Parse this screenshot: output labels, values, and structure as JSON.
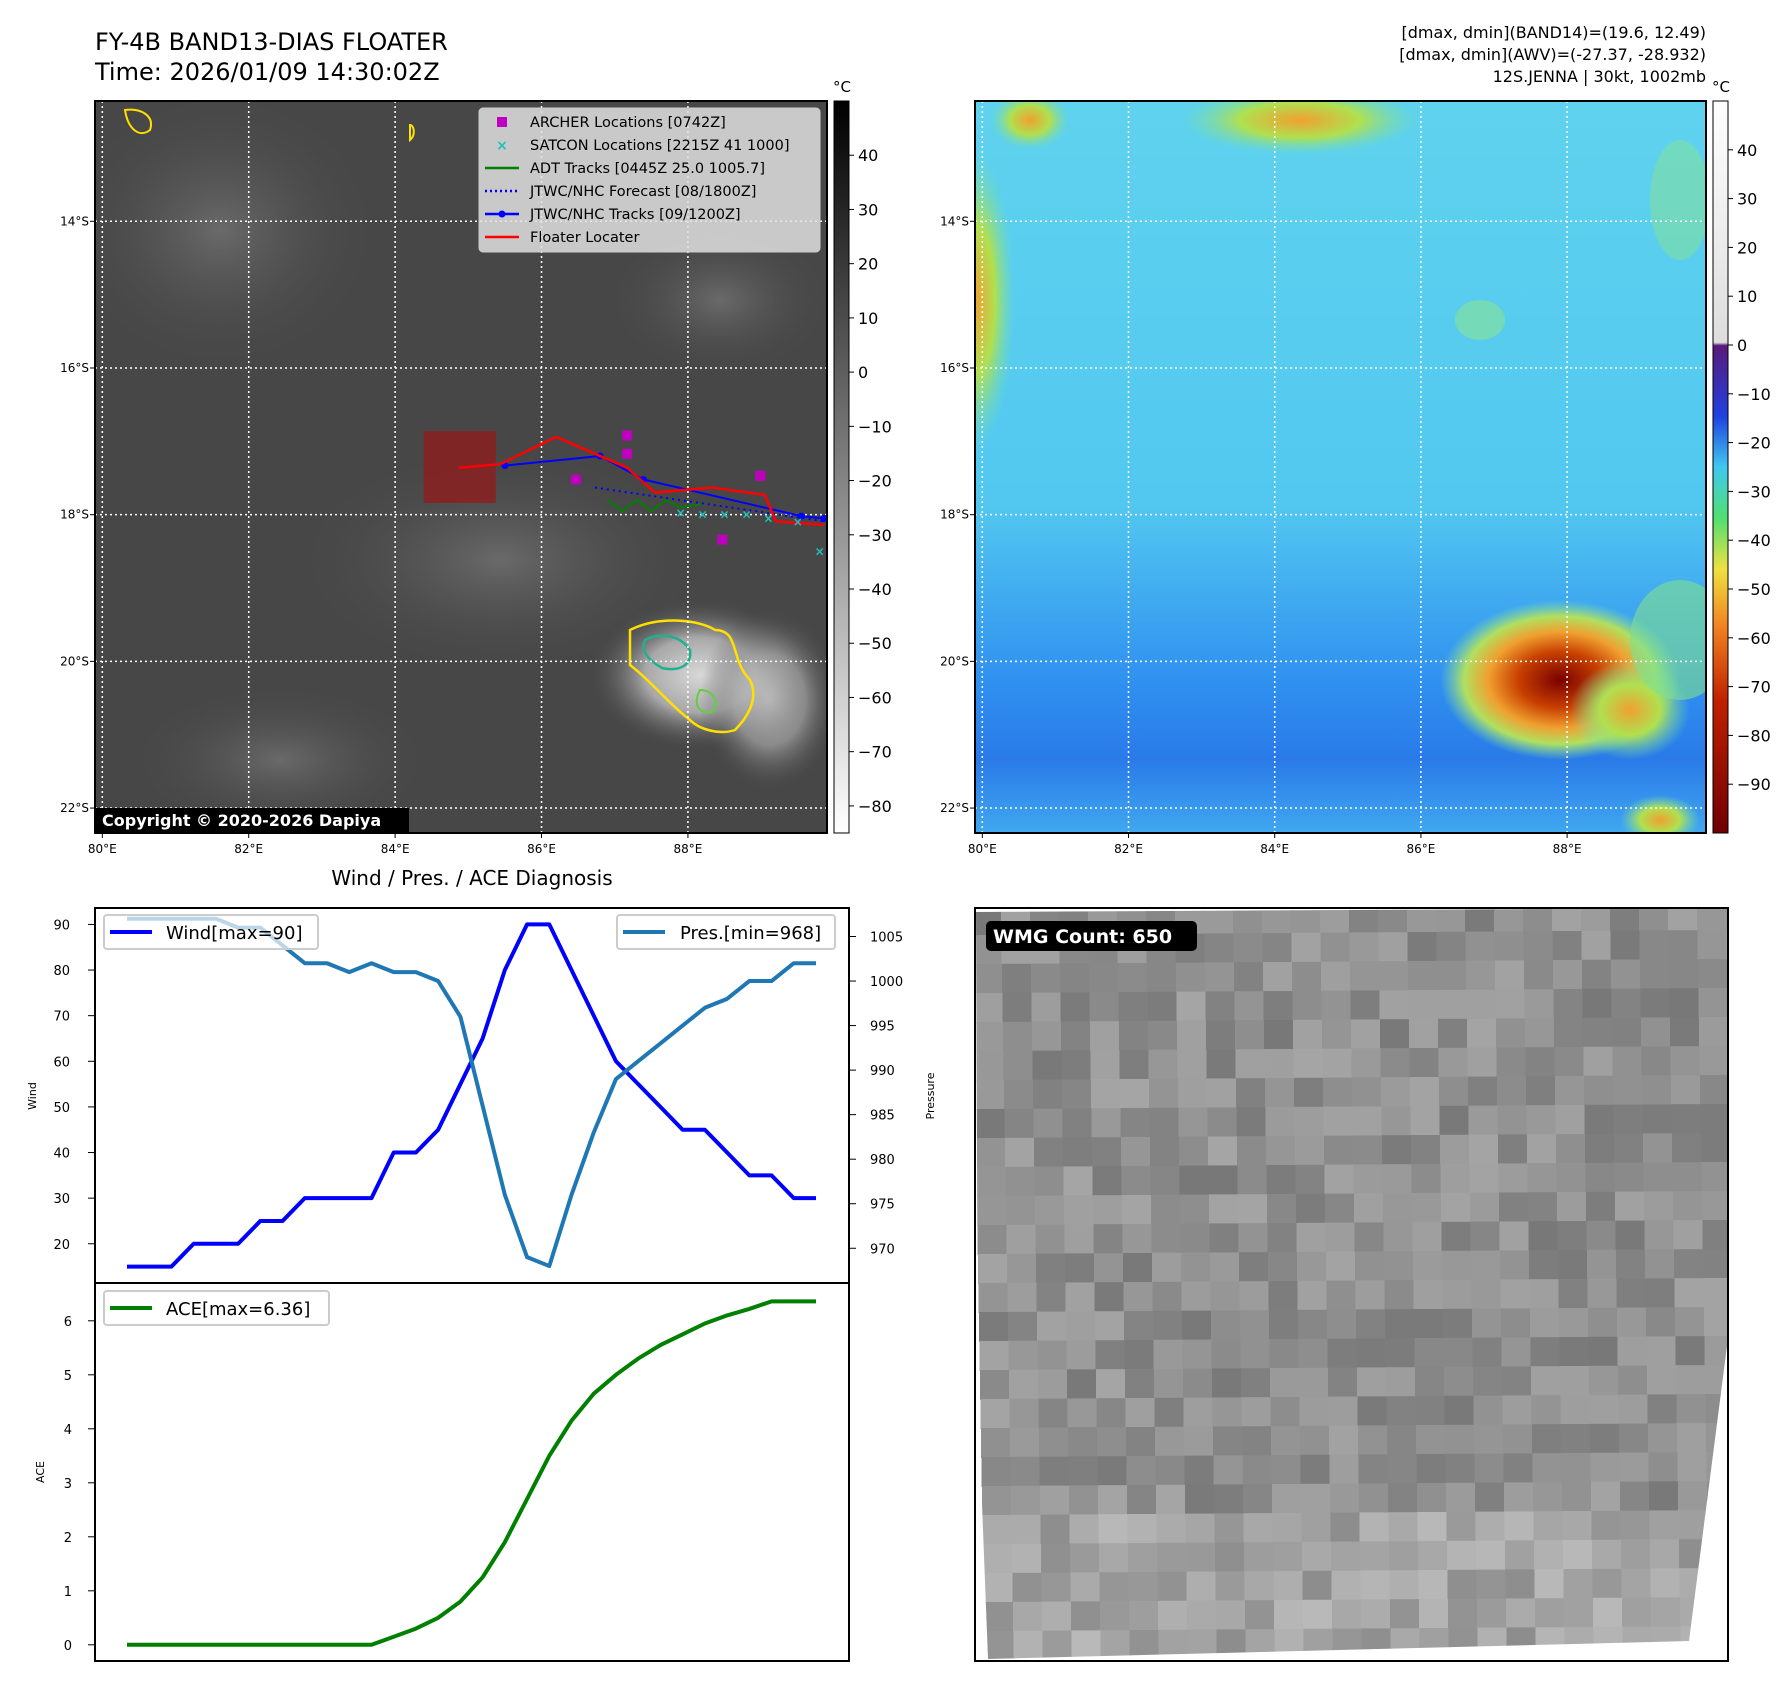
{
  "header": {
    "title": "FY-4B BAND13-DIAS FLOATER",
    "time": "Time: 2026/01/09 14:30:02Z",
    "info_line1": "[dmax, dmin](BAND14)=(19.6, 12.49)",
    "info_line2": "[dmax, dmin](AWV)=(-27.37, -28.932)",
    "info_line3": "12S.JENNA | 30kt, 1002mb"
  },
  "map": {
    "lon_ticks": [
      "80°E",
      "82°E",
      "84°E",
      "86°E",
      "88°E"
    ],
    "lon_values": [
      80,
      82,
      84,
      86,
      88
    ],
    "lat_ticks": [
      "14°S",
      "16°S",
      "18°S",
      "20°S",
      "22°S"
    ],
    "lat_values": [
      -14,
      -16,
      -18,
      -20,
      -22
    ],
    "lon_range": [
      79.9,
      89.9
    ],
    "lat_range": [
      -22.34,
      -12.36
    ],
    "copyright": "Copyright © 2020-2026 Dapiya",
    "colorbar_unit": "°C",
    "colorbar1_ticks": [
      "40",
      "30",
      "20",
      "10",
      "0",
      "−10",
      "−20",
      "−30",
      "−40",
      "−50",
      "−60",
      "−70",
      "−80"
    ],
    "colorbar1_values": [
      40,
      30,
      20,
      10,
      0,
      -10,
      -20,
      -30,
      -40,
      -50,
      -60,
      -70,
      -80
    ],
    "colorbar1_range": [
      -85,
      50
    ],
    "colorbar2_ticks": [
      "40",
      "30",
      "20",
      "10",
      "0",
      "−10",
      "−20",
      "−30",
      "−40",
      "−50",
      "−60",
      "−70",
      "−80",
      "−90"
    ],
    "colorbar2_values": [
      40,
      30,
      20,
      10,
      0,
      -10,
      -20,
      -30,
      -40,
      -50,
      -60,
      -70,
      -80,
      -90
    ],
    "colorbar2_range": [
      -100,
      50
    ],
    "legend": [
      {
        "label": "ARCHER Locations [0742Z]",
        "color": "#c000c0",
        "kind": "square"
      },
      {
        "label": "SATCON Locations [2215Z 41 1000]",
        "color": "#20c0c0",
        "kind": "x"
      },
      {
        "label": "ADT Tracks [0445Z 25.0 1005.7]",
        "color": "#008000",
        "kind": "line"
      },
      {
        "label": "JTWC/NHC Forecast [08/1800Z]",
        "color": "#0000ff",
        "kind": "dotted"
      },
      {
        "label": "JTWC/NHC Tracks [09/1200Z]",
        "color": "#0000ff",
        "kind": "line-dot"
      },
      {
        "label": "Floater Locater",
        "color": "#ff0000",
        "kind": "line"
      }
    ],
    "floater_box": {
      "lon": [
        84.39,
        85.375
      ],
      "lat": [
        -17.84,
        -16.86
      ]
    },
    "floater_track": [
      [
        84.875,
        -17.36
      ],
      [
        85.44,
        -17.31
      ],
      [
        86.2,
        -16.94
      ],
      [
        87.17,
        -17.36
      ],
      [
        87.55,
        -17.7
      ],
      [
        88.33,
        -17.63
      ],
      [
        89.05,
        -17.73
      ],
      [
        89.2,
        -18.09
      ],
      [
        89.86,
        -18.14
      ]
    ],
    "jtwc_track": [
      [
        85.5,
        -17.33
      ],
      [
        86.8,
        -17.2
      ],
      [
        87.39,
        -17.52
      ],
      [
        89.55,
        -18.02
      ],
      [
        89.86,
        -18.05
      ]
    ],
    "jtwc_forecast": [
      [
        86.73,
        -17.63
      ],
      [
        89.86,
        -18.09
      ]
    ],
    "adt_track": [
      [
        86.9,
        -17.8
      ],
      [
        87.1,
        -17.95
      ],
      [
        87.3,
        -17.8
      ],
      [
        87.5,
        -17.95
      ],
      [
        87.7,
        -17.8
      ],
      [
        87.9,
        -17.9
      ],
      [
        88.2,
        -17.85
      ]
    ],
    "archer_points": [
      [
        87.17,
        -16.92
      ],
      [
        87.17,
        -17.17
      ],
      [
        86.47,
        -17.52
      ],
      [
        88.99,
        -17.47
      ],
      [
        88.47,
        -18.34
      ]
    ],
    "satcon_points": [
      [
        87.9,
        -17.98
      ],
      [
        88.2,
        -18.0
      ],
      [
        88.5,
        -18.0
      ],
      [
        88.8,
        -18.0
      ],
      [
        89.1,
        -18.05
      ],
      [
        89.5,
        -18.1
      ],
      [
        89.8,
        -18.5
      ]
    ]
  },
  "wmg": {
    "label": "WMG Count: 650"
  },
  "chart_data": [
    {
      "type": "line",
      "title": "Wind / Pres. / ACE Diagnosis",
      "ylabel": "Wind",
      "y2label": "Pressure",
      "x": [
        0,
        1,
        2,
        3,
        4,
        5,
        6,
        7,
        8,
        9,
        10,
        11,
        12,
        13,
        14,
        15,
        16,
        17,
        18,
        19,
        20,
        21,
        22,
        23,
        24,
        25,
        26,
        27,
        28,
        29,
        30,
        31
      ],
      "series": [
        {
          "name": "Wind[max=90]",
          "color": "#0000ff",
          "axis": "left",
          "values": [
            15,
            15,
            15,
            20,
            20,
            20,
            25,
            25,
            30,
            30,
            30,
            30,
            40,
            40,
            45,
            55,
            65,
            80,
            90,
            90,
            80,
            70,
            60,
            55,
            50,
            45,
            45,
            40,
            35,
            35,
            30,
            30
          ]
        },
        {
          "name": "Pres.[min=968]",
          "color": "#1f77b4",
          "axis": "right",
          "values": [
            1007,
            1007,
            1007,
            1007,
            1007,
            1006,
            1006,
            1004,
            1002,
            1002,
            1001,
            1002,
            1001,
            1001,
            1000,
            996,
            986,
            976,
            969,
            968,
            976,
            983,
            989,
            991,
            993,
            995,
            997,
            998,
            1000,
            1000,
            1002,
            1002
          ]
        }
      ],
      "yticks": [
        "20",
        "30",
        "40",
        "50",
        "60",
        "70",
        "80",
        "90"
      ],
      "ytick_values": [
        20,
        30,
        40,
        50,
        60,
        70,
        80,
        90
      ],
      "y2ticks": [
        "970",
        "975",
        "980",
        "985",
        "990",
        "995",
        "1000",
        "1005"
      ],
      "y2tick_values": [
        970,
        975,
        980,
        985,
        990,
        995,
        1000,
        1005
      ],
      "ylim": [
        11.4,
        93.6
      ],
      "y2lim": [
        966.1,
        1008.2
      ]
    },
    {
      "type": "line",
      "ylabel": "ACE",
      "x": [
        0,
        1,
        2,
        3,
        4,
        5,
        6,
        7,
        8,
        9,
        10,
        11,
        12,
        13,
        14,
        15,
        16,
        17,
        18,
        19,
        20,
        21,
        22,
        23,
        24,
        25,
        26,
        27,
        28,
        29,
        30,
        31
      ],
      "series": [
        {
          "name": "ACE[max=6.36]",
          "color": "#008000",
          "values": [
            0,
            0,
            0,
            0,
            0,
            0,
            0,
            0,
            0,
            0,
            0,
            0,
            0.15,
            0.3,
            0.5,
            0.8,
            1.25,
            1.9,
            2.7,
            3.5,
            4.15,
            4.65,
            5.0,
            5.3,
            5.55,
            5.75,
            5.95,
            6.1,
            6.22,
            6.36,
            6.36,
            6.36
          ]
        }
      ],
      "yticks": [
        "0",
        "1",
        "2",
        "3",
        "4",
        "5",
        "6"
      ],
      "ytick_values": [
        0,
        1,
        2,
        3,
        4,
        5,
        6
      ],
      "ylim": [
        -0.3,
        6.7
      ]
    }
  ]
}
